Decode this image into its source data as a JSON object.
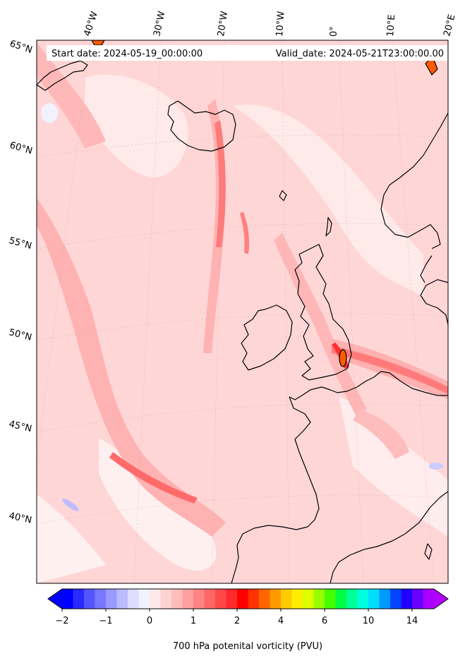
{
  "header": {
    "start_date": "Start date: 2024-05-19_00:00:00",
    "valid_date": "Valid_date: 2024-05-21T23:00:00.00"
  },
  "longitude_labels": [
    "40°W",
    "30°W",
    "20°W",
    "10°W",
    "0°",
    "10°E",
    "20°E"
  ],
  "latitude_labels": [
    "65°N",
    "60°N",
    "55°N",
    "50°N",
    "45°N",
    "40°N"
  ],
  "colorbar": {
    "tick_labels": [
      "−2",
      "−1",
      "0",
      "1",
      "2",
      "4",
      "6",
      "10",
      "14"
    ],
    "label": "700 hPa potenital vorticity (PVU)",
    "levels": [
      -2,
      -1.75,
      -1.5,
      -1.25,
      -1,
      -0.75,
      -0.5,
      -0.25,
      0,
      0.25,
      0.5,
      0.75,
      1,
      1.25,
      1.5,
      1.75,
      2,
      2.5,
      3,
      3.5,
      4,
      4.5,
      5,
      5.5,
      6,
      7,
      8,
      9,
      10,
      11,
      12,
      13,
      14,
      15
    ],
    "colors": [
      "#0000ff",
      "#2a2aff",
      "#5555ff",
      "#7777ff",
      "#9999ff",
      "#bbbbff",
      "#ddddff",
      "#f2f2ff",
      "#ffe8e8",
      "#ffd2d2",
      "#ffbcbc",
      "#ffa0a0",
      "#ff8484",
      "#ff6666",
      "#ff4848",
      "#ff2a2a",
      "#ff0000",
      "#ff3300",
      "#ff6600",
      "#ff9900",
      "#ffcc00",
      "#ffee00",
      "#ddff00",
      "#99ff00",
      "#44ff00",
      "#00ff44",
      "#00ff99",
      "#00ffdd",
      "#00ddff",
      "#0099ff",
      "#0044ff",
      "#2200ff",
      "#6600ff",
      "#aa00ff"
    ],
    "extend_under_color": "#0000ff",
    "extend_over_color": "#b400ff"
  },
  "map": {
    "field": "700 hPa potential vorticity",
    "background_color": "#ffd8d8"
  }
}
